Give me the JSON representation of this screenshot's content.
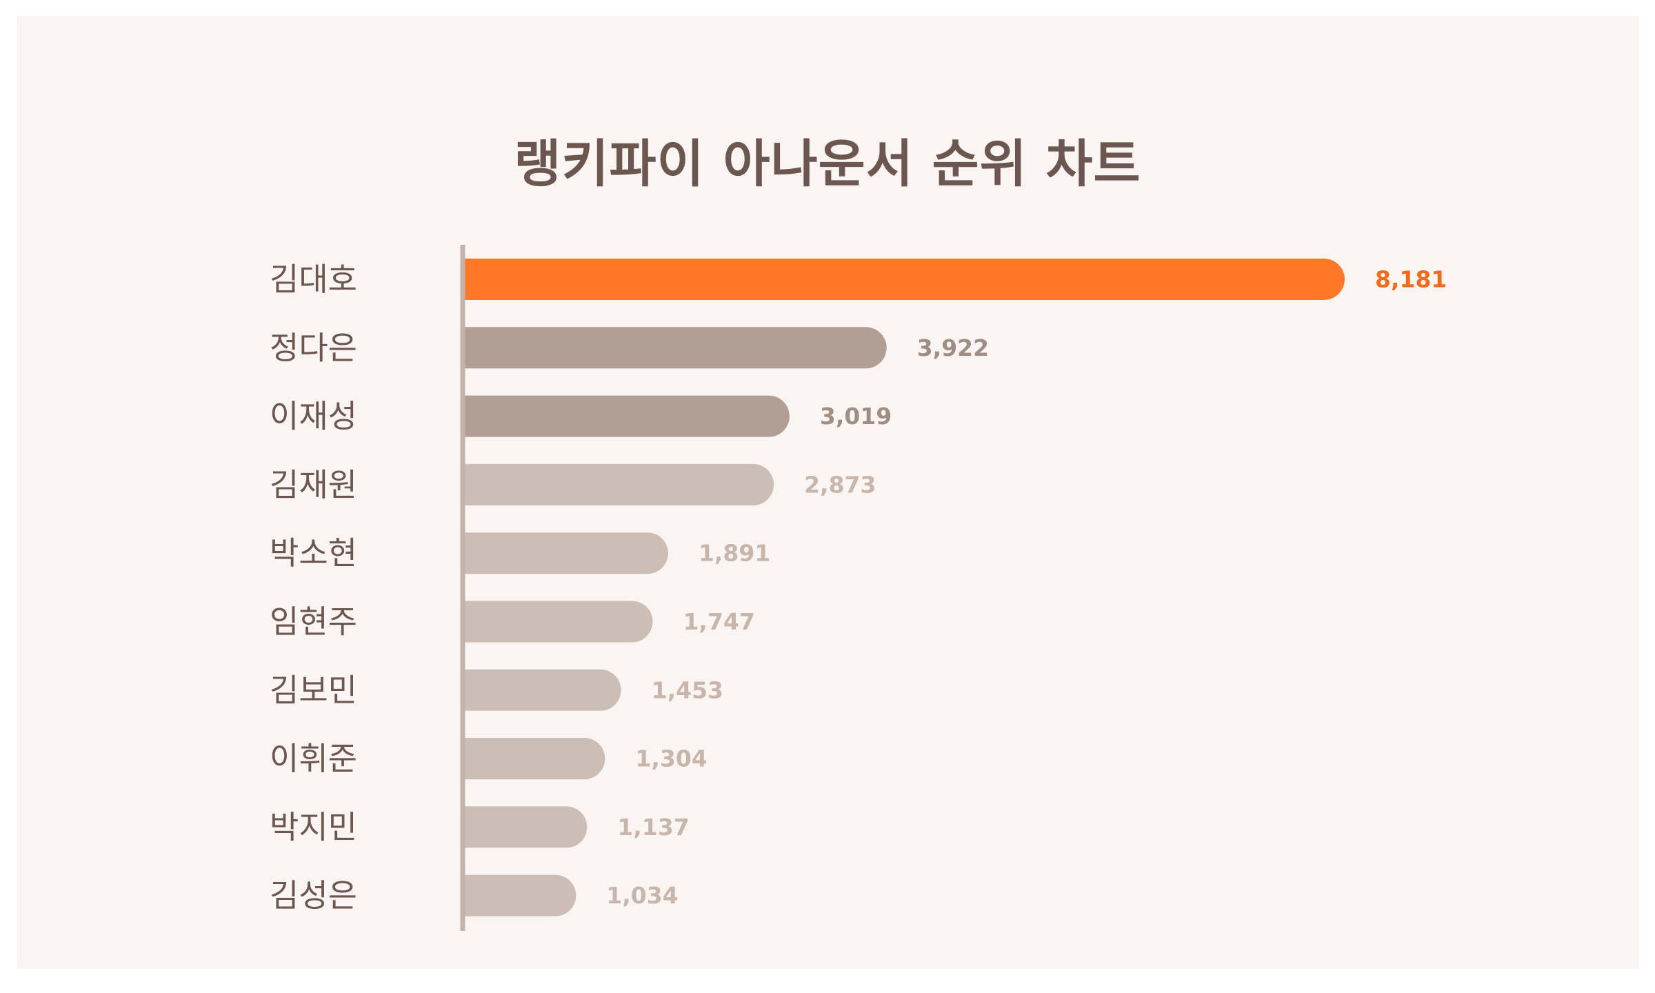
{
  "chart_data": {
    "type": "bar",
    "orientation": "horizontal",
    "title": "랭키파이 아나운서 순위 차트",
    "categories": [
      "김대호",
      "정다은",
      "이재성",
      "김재원",
      "박소현",
      "임현주",
      "김보민",
      "이휘준",
      "박지민",
      "김성은"
    ],
    "values": [
      8181,
      3922,
      3019,
      2873,
      1891,
      1747,
      1453,
      1304,
      1137,
      1034
    ],
    "value_labels": [
      "8,181",
      "3,922",
      "3,019",
      "2,873",
      "1,891",
      "1,747",
      "1,453",
      "1,304",
      "1,137",
      "1,034"
    ],
    "xlim": [
      0,
      8181
    ],
    "grid": false,
    "legend": "none"
  },
  "colors": {
    "background": "#faf5f3",
    "title": "#6b5750",
    "axis": "#c4b3aa",
    "top_bar": "#ff7828",
    "top_label": "#f06a1a",
    "second_tier_bar": "#b19f96",
    "second_tier_label": "#a08e84",
    "rest_bar": "#cdbeb5",
    "rest_label": "#c8b6ac",
    "category_label": "#6b5750"
  }
}
